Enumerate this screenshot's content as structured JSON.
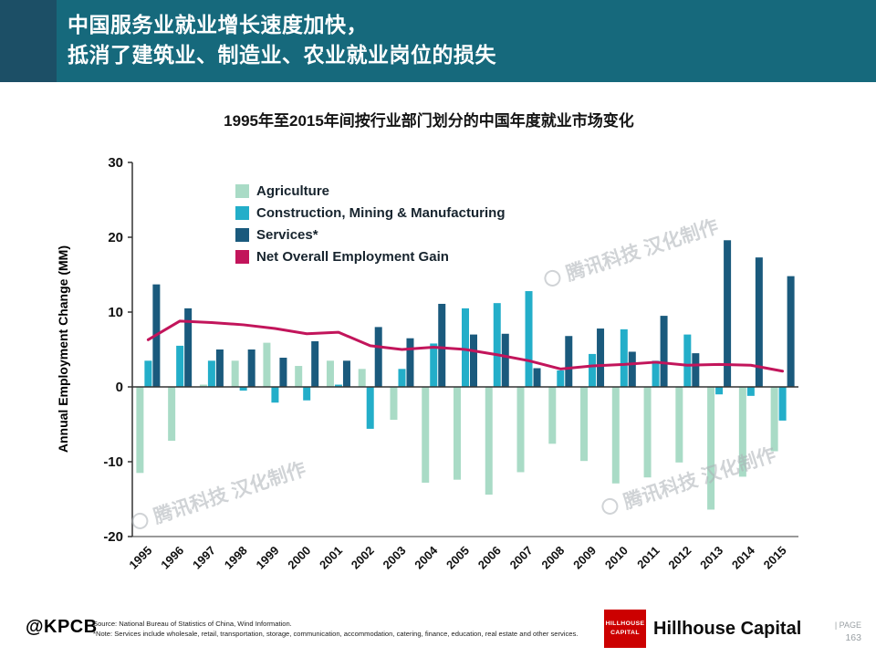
{
  "header": {
    "line1": "中国服务业就业增长速度加快，",
    "line2": "抵消了建筑业、制造业、农业就业岗位的损失"
  },
  "chart": {
    "title": "1995年至2015年间按行业部门划分的中国年度就业市场变化",
    "y_axis_label": "Annual Employment Change (MM)"
  },
  "chart_data": {
    "type": "bar",
    "title": "1995年至2015年间按行业部门划分的中国年度就业市场变化",
    "ylabel": "Annual Employment Change (MM)",
    "ylim": [
      -20,
      30
    ],
    "yticks": [
      30,
      20,
      10,
      0,
      -10,
      -20
    ],
    "grid": false,
    "legend_position": "top-left-inside",
    "categories": [
      "1995",
      "1996",
      "1997",
      "1998",
      "1999",
      "2000",
      "2001",
      "2002",
      "2003",
      "2004",
      "2005",
      "2006",
      "2007",
      "2008",
      "2009",
      "2010",
      "2011",
      "2012",
      "2013",
      "2014",
      "2015"
    ],
    "series": [
      {
        "name": "Agriculture",
        "type": "bar",
        "color": "#a9dbc6",
        "values": [
          -11.5,
          -7.2,
          0.3,
          3.5,
          5.9,
          2.8,
          3.5,
          2.4,
          -4.4,
          -12.8,
          -12.4,
          -14.4,
          -11.4,
          -7.6,
          -9.9,
          -12.9,
          -12.1,
          -10.1,
          -16.4,
          -12.0,
          -8.6
        ]
      },
      {
        "name": "Construction, Mining & Manufacturing",
        "type": "bar",
        "color": "#23aec9",
        "values": [
          3.5,
          5.5,
          3.5,
          -0.5,
          -2.1,
          -1.8,
          0.3,
          -5.6,
          2.4,
          5.8,
          10.5,
          11.2,
          12.8,
          2.2,
          4.4,
          7.7,
          3.5,
          7.0,
          -1.0,
          -1.2,
          -4.5
        ]
      },
      {
        "name": "Services*",
        "type": "bar",
        "color": "#1a5a7d",
        "values": [
          13.7,
          10.5,
          5.0,
          5.0,
          3.9,
          6.1,
          3.5,
          8.0,
          6.5,
          11.1,
          7.0,
          7.1,
          2.5,
          6.8,
          7.8,
          4.7,
          9.5,
          4.5,
          19.6,
          17.3,
          14.8
        ]
      },
      {
        "name": "Net Overall Employment Gain",
        "type": "line",
        "color": "#c2155b",
        "values": [
          6.3,
          8.8,
          8.6,
          8.3,
          7.8,
          7.1,
          7.3,
          5.5,
          5.0,
          5.3,
          5.0,
          4.3,
          3.5,
          2.4,
          2.8,
          3.0,
          3.3,
          2.9,
          3.0,
          2.9,
          2.1
        ]
      }
    ]
  },
  "watermark": {
    "text": "腾讯科技 汉化制作"
  },
  "footer": {
    "kpcb": "@KPCB",
    "source_line1": "Source: National Bureau of Statistics of China, Wind Information.",
    "source_line2": "*Note: Services include wholesale, retail, transportation, storage, communication, accommodation, catering, finance, education, real estate and other services.",
    "logo_text": "HILLHOUSE CAPITAL",
    "brand": "Hillhouse Capital",
    "page_label": "|  PAGE",
    "page_number": "163"
  },
  "colors": {
    "header_teal": "#16697c",
    "header_corner": "#1c4f66",
    "hillhouse_red": "#cc0000",
    "watermark_gray": "#aab0b5"
  }
}
